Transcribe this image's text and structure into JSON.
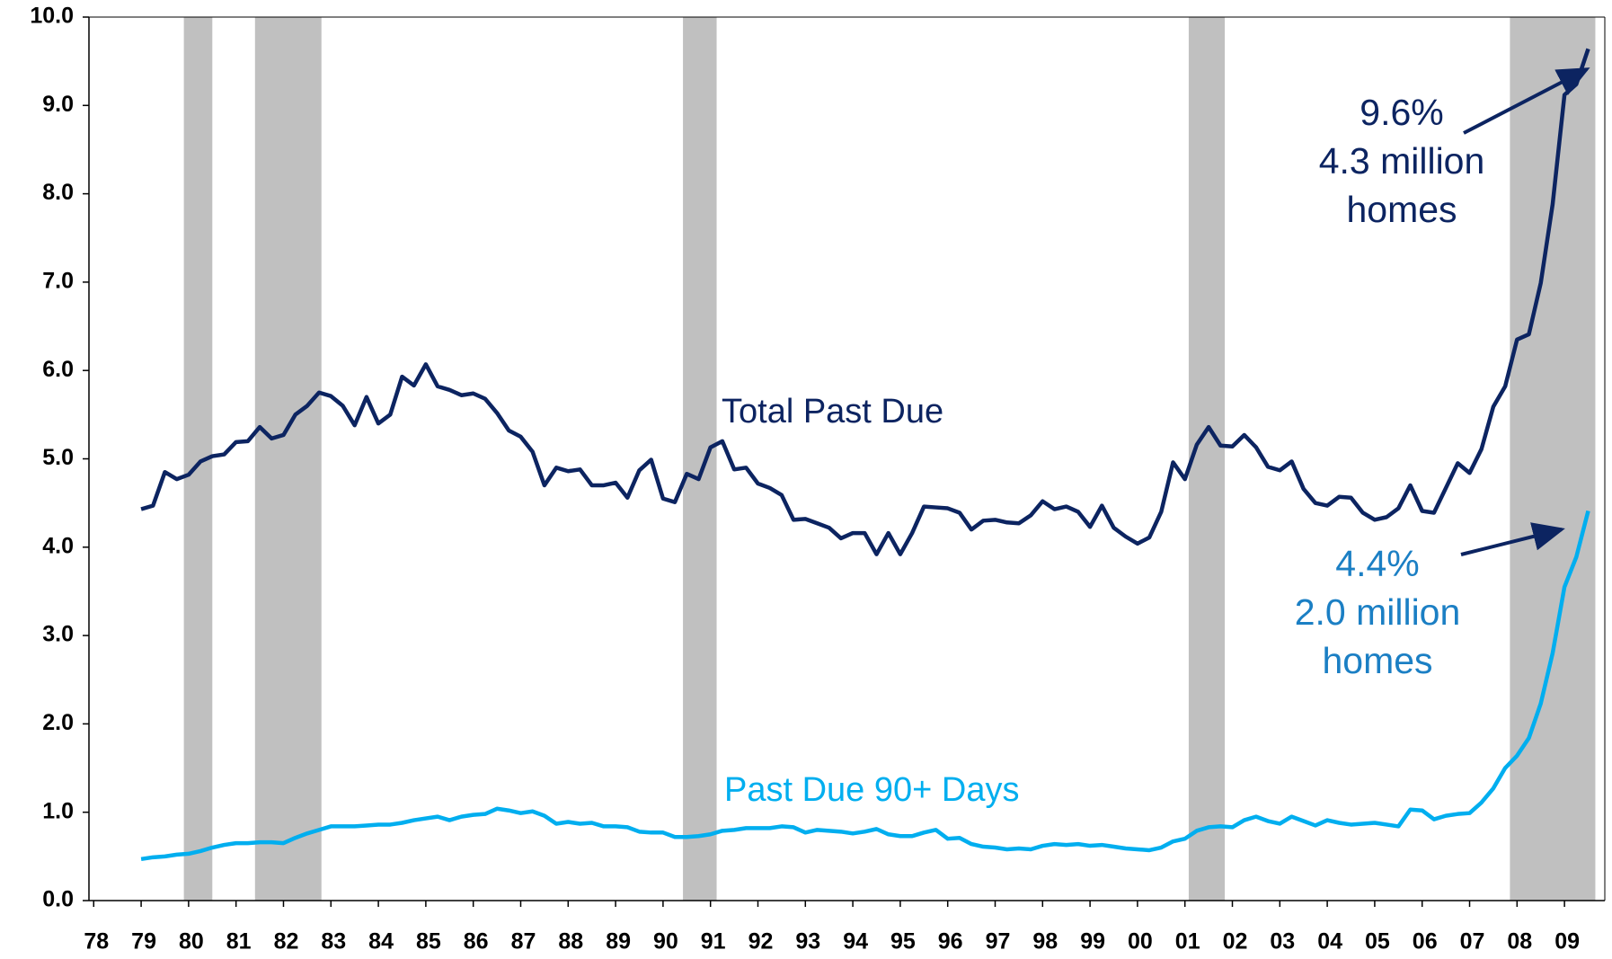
{
  "chart_data": {
    "type": "line",
    "xlim": [
      1977.9,
      2009.85
    ],
    "xticks": [
      {
        "value": 1978,
        "label": "78"
      },
      {
        "value": 1979,
        "label": "79"
      },
      {
        "value": 1980,
        "label": "80"
      },
      {
        "value": 1981,
        "label": "81"
      },
      {
        "value": 1982,
        "label": "82"
      },
      {
        "value": 1983,
        "label": "83"
      },
      {
        "value": 1984,
        "label": "84"
      },
      {
        "value": 1985,
        "label": "85"
      },
      {
        "value": 1986,
        "label": "86"
      },
      {
        "value": 1987,
        "label": "87"
      },
      {
        "value": 1988,
        "label": "88"
      },
      {
        "value": 1989,
        "label": "89"
      },
      {
        "value": 1990,
        "label": "90"
      },
      {
        "value": 1991,
        "label": "91"
      },
      {
        "value": 1992,
        "label": "92"
      },
      {
        "value": 1993,
        "label": "93"
      },
      {
        "value": 1994,
        "label": "94"
      },
      {
        "value": 1995,
        "label": "95"
      },
      {
        "value": 1996,
        "label": "96"
      },
      {
        "value": 1997,
        "label": "97"
      },
      {
        "value": 1998,
        "label": "98"
      },
      {
        "value": 1999,
        "label": "99"
      },
      {
        "value": 2000,
        "label": "00"
      },
      {
        "value": 2001,
        "label": "01"
      },
      {
        "value": 2002,
        "label": "02"
      },
      {
        "value": 2003,
        "label": "03"
      },
      {
        "value": 2004,
        "label": "04"
      },
      {
        "value": 2005,
        "label": "05"
      },
      {
        "value": 2006,
        "label": "06"
      },
      {
        "value": 2007,
        "label": "07"
      },
      {
        "value": 2008,
        "label": "08"
      },
      {
        "value": 2009,
        "label": "09"
      }
    ],
    "ylim": [
      0,
      10
    ],
    "yticks": [
      {
        "value": 0,
        "label": "0.0"
      },
      {
        "value": 1,
        "label": "1.0"
      },
      {
        "value": 2,
        "label": "2.0"
      },
      {
        "value": 3,
        "label": "3.0"
      },
      {
        "value": 4,
        "label": "4.0"
      },
      {
        "value": 5,
        "label": "5.0"
      },
      {
        "value": 6,
        "label": "6.0"
      },
      {
        "value": 7,
        "label": "7.0"
      },
      {
        "value": 8,
        "label": "8.0"
      },
      {
        "value": 9,
        "label": "9.0"
      },
      {
        "value": 10,
        "label": "10.0"
      }
    ],
    "recession_color": "#c0c0c0",
    "recessions": [
      [
        1979.9,
        1980.5
      ],
      [
        1981.4,
        1982.8
      ],
      [
        1990.42,
        1991.13
      ],
      [
        2001.08,
        2001.84
      ],
      [
        2007.85,
        2009.65
      ]
    ],
    "x": [
      1979,
      1979.25,
      1979.5,
      1979.75,
      1980,
      1980.25,
      1980.5,
      1980.75,
      1981,
      1981.25,
      1981.5,
      1981.75,
      1982,
      1982.25,
      1982.5,
      1982.75,
      1983,
      1983.25,
      1983.5,
      1983.75,
      1984,
      1984.25,
      1984.5,
      1984.75,
      1985,
      1985.25,
      1985.5,
      1985.75,
      1986,
      1986.25,
      1986.5,
      1986.75,
      1987,
      1987.25,
      1987.5,
      1987.75,
      1988,
      1988.25,
      1988.5,
      1988.75,
      1989,
      1989.25,
      1989.5,
      1989.75,
      1990,
      1990.25,
      1990.5,
      1990.75,
      1991,
      1991.25,
      1991.5,
      1991.75,
      1992,
      1992.25,
      1992.5,
      1992.75,
      1993,
      1993.25,
      1993.5,
      1993.75,
      1994,
      1994.25,
      1994.5,
      1994.75,
      1995,
      1995.25,
      1995.5,
      1995.75,
      1996,
      1996.25,
      1996.5,
      1996.75,
      1997,
      1997.25,
      1997.5,
      1997.75,
      1998,
      1998.25,
      1998.5,
      1998.75,
      1999,
      1999.25,
      1999.5,
      1999.75,
      2000,
      2000.25,
      2000.5,
      2000.75,
      2001,
      2001.25,
      2001.5,
      2001.75,
      2002,
      2002.25,
      2002.5,
      2002.75,
      2003,
      2003.25,
      2003.5,
      2003.75,
      2004,
      2004.25,
      2004.5,
      2004.75,
      2005,
      2005.25,
      2005.5,
      2005.75,
      2006,
      2006.25,
      2006.5,
      2006.75,
      2007,
      2007.25,
      2007.5,
      2007.75,
      2008,
      2008.25,
      2008.5,
      2008.75,
      2009,
      2009.25,
      2009.5
    ],
    "series": [
      {
        "name": "Total Past Due",
        "color": "#0c2461",
        "values": [
          4.43,
          4.47,
          4.85,
          4.77,
          4.82,
          4.97,
          5.03,
          5.05,
          5.19,
          5.2,
          5.36,
          5.23,
          5.27,
          5.5,
          5.6,
          5.75,
          5.71,
          5.6,
          5.38,
          5.7,
          5.4,
          5.5,
          5.93,
          5.83,
          6.07,
          5.82,
          5.78,
          5.72,
          5.74,
          5.68,
          5.52,
          5.32,
          5.25,
          5.08,
          4.7,
          4.9,
          4.86,
          4.88,
          4.7,
          4.7,
          4.73,
          4.56,
          4.87,
          4.99,
          4.55,
          4.51,
          4.83,
          4.77,
          5.13,
          5.2,
          4.88,
          4.9,
          4.72,
          4.67,
          4.59,
          4.31,
          4.32,
          4.27,
          4.22,
          4.1,
          4.16,
          4.16,
          3.92,
          4.16,
          3.92,
          4.16,
          4.46,
          4.45,
          4.44,
          4.39,
          4.2,
          4.3,
          4.31,
          4.28,
          4.27,
          4.36,
          4.52,
          4.43,
          4.46,
          4.4,
          4.23,
          4.47,
          4.22,
          4.12,
          4.04,
          4.11,
          4.4,
          4.96,
          4.77,
          5.16,
          5.36,
          5.15,
          5.14,
          5.27,
          5.13,
          4.91,
          4.87,
          4.97,
          4.66,
          4.5,
          4.47,
          4.57,
          4.56,
          4.39,
          4.31,
          4.34,
          4.44,
          4.7,
          4.41,
          4.39,
          4.67,
          4.95,
          4.84,
          5.11,
          5.59,
          5.82,
          6.35,
          6.41,
          6.99,
          7.88,
          9.12,
          9.24,
          9.64
        ]
      },
      {
        "name": "Past Due 90+ Days",
        "color": "#00aeef",
        "values": [
          0.47,
          0.49,
          0.5,
          0.52,
          0.53,
          0.56,
          0.6,
          0.63,
          0.65,
          0.65,
          0.66,
          0.66,
          0.65,
          0.71,
          0.76,
          0.8,
          0.84,
          0.84,
          0.84,
          0.85,
          0.86,
          0.86,
          0.88,
          0.91,
          0.93,
          0.95,
          0.91,
          0.95,
          0.97,
          0.98,
          1.04,
          1.02,
          0.99,
          1.01,
          0.96,
          0.87,
          0.89,
          0.87,
          0.88,
          0.84,
          0.84,
          0.83,
          0.78,
          0.77,
          0.77,
          0.72,
          0.72,
          0.73,
          0.75,
          0.79,
          0.8,
          0.82,
          0.82,
          0.82,
          0.84,
          0.83,
          0.77,
          0.8,
          0.79,
          0.78,
          0.76,
          0.78,
          0.81,
          0.75,
          0.73,
          0.73,
          0.77,
          0.8,
          0.7,
          0.71,
          0.64,
          0.61,
          0.6,
          0.58,
          0.59,
          0.58,
          0.62,
          0.64,
          0.63,
          0.64,
          0.62,
          0.63,
          0.61,
          0.59,
          0.58,
          0.57,
          0.6,
          0.67,
          0.7,
          0.79,
          0.83,
          0.84,
          0.83,
          0.91,
          0.95,
          0.9,
          0.87,
          0.95,
          0.9,
          0.85,
          0.91,
          0.88,
          0.86,
          0.87,
          0.88,
          0.86,
          0.84,
          1.03,
          1.02,
          0.92,
          0.96,
          0.98,
          0.99,
          1.11,
          1.27,
          1.5,
          1.64,
          1.84,
          2.23,
          2.8,
          3.55,
          3.89,
          4.41
        ]
      }
    ],
    "annotations": [
      {
        "lines": [
          "9.6%",
          "4.3 million",
          "homes"
        ],
        "color": "#0c2461"
      },
      {
        "lines": [
          "4.4%",
          "2.0 million",
          "homes"
        ],
        "color": "#1b7fc4"
      }
    ]
  }
}
